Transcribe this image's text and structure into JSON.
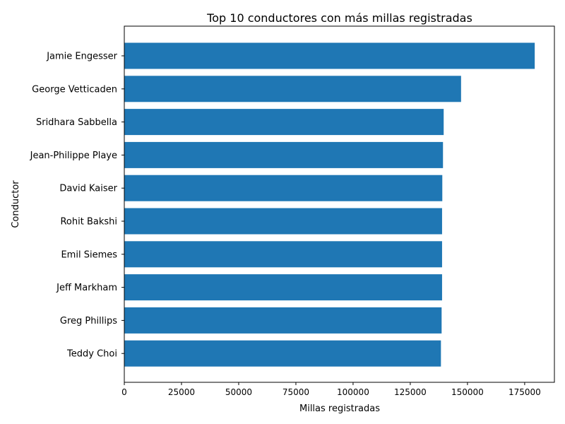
{
  "chart_data": {
    "type": "bar",
    "orientation": "horizontal",
    "title": "Top 10 conductores con más millas registradas",
    "xlabel": "Millas registradas",
    "ylabel": "Conductor",
    "categories": [
      "Jamie Engesser",
      "George Vetticaden",
      "Sridhara Sabbella",
      "Jean-Philippe Playe",
      "David Kaiser",
      "Rohit Bakshi",
      "Emil Siemes",
      "Jeff Markham",
      "Greg Phillips",
      "Teddy Choi"
    ],
    "values": [
      179400,
      147200,
      139600,
      139300,
      139000,
      138900,
      138900,
      138900,
      138700,
      138400
    ],
    "xlim": [
      0,
      188000
    ],
    "xticks": [
      0,
      25000,
      50000,
      75000,
      100000,
      125000,
      150000,
      175000
    ],
    "bar_color": "#1f77b4",
    "grid": false,
    "legend": "none"
  }
}
